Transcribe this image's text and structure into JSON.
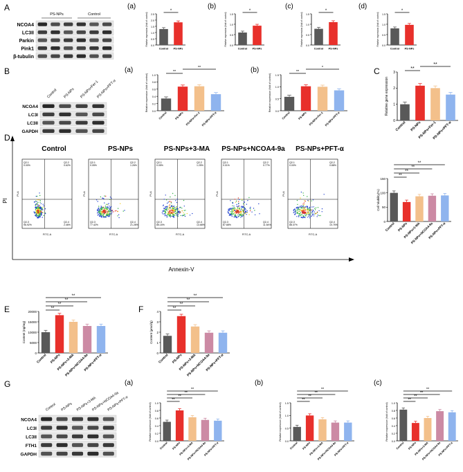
{
  "panels": {
    "A": {
      "letter": "A",
      "blot_header": [
        "PS-NPs",
        "Control"
      ],
      "blot_rows": [
        "NCOA4",
        "LC3II",
        "Parkin",
        "Pink1",
        "β-tubulin"
      ],
      "charts": [
        {
          "sub": "(a)",
          "categories": [
            "Control",
            "PS-NPs"
          ],
          "values": [
            1.28,
            1.82
          ],
          "ylim": [
            0,
            2.5
          ],
          "ticks": [
            "0.0",
            "0.5",
            "1.0",
            "1.5",
            "2.0",
            "2.5"
          ],
          "sig": [
            "*"
          ]
        },
        {
          "sub": "(b)",
          "categories": [
            "Control",
            "PS-NPs"
          ],
          "values": [
            0.6,
            0.93
          ],
          "ylim": [
            0,
            1.5
          ],
          "ticks": [
            "0.0",
            "0.5",
            "1.0",
            "1.5"
          ],
          "sig": [
            "*"
          ]
        },
        {
          "sub": "(c)",
          "categories": [
            "Control",
            "PS-NPs"
          ],
          "values": [
            0.78,
            1.1
          ],
          "ylim": [
            0,
            1.5
          ],
          "ticks": [
            "0.0",
            "0.5",
            "1.0",
            "1.5"
          ],
          "sig": [
            "*"
          ]
        },
        {
          "sub": "(d)",
          "categories": [
            "Control",
            "PS-NPs"
          ],
          "values": [
            0.8,
            0.97
          ],
          "ylim": [
            0,
            1.5
          ],
          "ticks": [
            "0.0",
            "0.5",
            "1.0",
            "1.5"
          ],
          "sig": [
            "*"
          ]
        }
      ]
    },
    "B": {
      "letter": "B",
      "blot_header": [
        "Control",
        "PS-NPs",
        "PS-NPs+Fer-1",
        "PS-NPs+PFT-α"
      ],
      "blot_rows": [
        "NCOA4",
        "LC3I",
        "LC3II",
        "GAPDH"
      ],
      "charts": [
        {
          "sub": "(a)",
          "categories": [
            "Control",
            "PS-NPs",
            "PS-NPs+Fer-1",
            "PS-NPs+PFT-α"
          ],
          "values": [
            0.34,
            0.67,
            0.68,
            0.46
          ],
          "ylim": [
            0,
            1.0
          ],
          "ticks": [
            "0.0",
            "0.2",
            "0.4",
            "0.6",
            "0.8",
            "1.0"
          ],
          "sig": [
            "**",
            "**"
          ]
        },
        {
          "sub": "(b)",
          "categories": [
            "Control",
            "PS-NPs",
            "PS-NPs+Fer-1",
            "PS-NPs+PFT-α"
          ],
          "values": [
            0.58,
            1.02,
            1.0,
            0.85
          ],
          "ylim": [
            0,
            1.5
          ],
          "ticks": [
            "0.0",
            "0.5",
            "1.0",
            "1.5"
          ],
          "sig": [
            "**",
            "*"
          ]
        }
      ]
    },
    "C": {
      "letter": "C",
      "chart": {
        "categories": [
          "Control",
          "PS-NPs",
          "PS-NPs+Fer-1",
          "PS-NPs+PFT-α"
        ],
        "values": [
          1.0,
          2.15,
          2.0,
          1.6
        ],
        "ylim": [
          0,
          3
        ],
        "ticks": [
          "0",
          "1",
          "2",
          "3"
        ],
        "ylabel": "Relative gene expression",
        "sig": [
          "**",
          "**"
        ]
      }
    },
    "D": {
      "letter": "D",
      "titles": [
        "Control",
        "PS-NPs",
        "PS-NPs+3-MA",
        "PS-NPs+NCOA4-9a",
        "PS-NPs+PFT-α"
      ],
      "quadrants": [
        {
          "q1": "Q2-1",
          "q1v": "0.00%",
          "q2": "Q2-2",
          "q2v": "0.62%",
          "q3": "Q2-3",
          "q3v": "96.92%",
          "q4": "Q2-4",
          "q4v": "2.46%"
        },
        {
          "q1": "Q2-1",
          "q1v": "0.05%",
          "q2": "Q2-2",
          "q2v": "1.26%",
          "q3": "Q2-3",
          "q3v": "77.42%",
          "q4": "Q2-4",
          "q4v": "21.28%"
        },
        {
          "q1": "Q2-1",
          "q1v": "0.05%",
          "q2": "Q2-2",
          "q2v": "1.25%",
          "q3": "Q2-3",
          "q3v": "85.15%",
          "q4": "Q2-4",
          "q4v": "13.68%"
        },
        {
          "q1": "Q2-1",
          "q1v": "0.01%",
          "q2": "Q2-2",
          "q2v": "0.77%",
          "q3": "Q2-3",
          "q3v": "87.68%",
          "q4": "Q2-4",
          "q4v": "11.54%"
        },
        {
          "q1": "Q2-1",
          "q1v": "0.00%",
          "q2": "Q2-2",
          "q2v": "0.88%",
          "q3": "Q2-3",
          "q3v": "88.37%",
          "q4": "Q2-4",
          "q4v": "10.75%"
        }
      ],
      "axis_x": "FITC-A",
      "axis_y": "PI-A",
      "big_x": "Annexin-V",
      "big_y": "PI",
      "chart": {
        "categories": [
          "Control",
          "PS-NPs",
          "PS-NPs+3-MA",
          "PS-NPs+NCOA4-9a",
          "PS-NPs+PFT-α"
        ],
        "values": [
          100,
          68,
          88,
          90,
          91
        ],
        "ylim": [
          0,
          150
        ],
        "ticks": [
          "0",
          "50",
          "100",
          "150"
        ],
        "ylabel": "Cell Viability(%)",
        "sig": [
          "**",
          "**",
          "**",
          "**"
        ]
      }
    },
    "E": {
      "letter": "E",
      "chart": {
        "categories": [
          "Control",
          "PS-NPs",
          "PS-NPs+3-MA",
          "PS-NPs+NCOA4-9a",
          "PS-NPs+PFT-α"
        ],
        "values": [
          10000,
          18200,
          15000,
          13000,
          13000
        ],
        "ylim": [
          0,
          20000
        ],
        "ticks": [
          "0",
          "5000",
          "10000",
          "15000",
          "20000"
        ],
        "ylabel": "Content (ng/mg)",
        "sig": [
          "**",
          "**",
          "**",
          "**"
        ]
      }
    },
    "F": {
      "letter": "F",
      "chart": {
        "categories": [
          "Control",
          "PS-NPs",
          "PS-NPs+3-MA",
          "PS-NPs+NCOA4-9a",
          "PS-NPs+PFT-α"
        ],
        "values": [
          1.65,
          3.55,
          2.55,
          1.95,
          1.95
        ],
        "ylim": [
          0,
          4
        ],
        "ticks": [
          "0",
          "1",
          "2",
          "3",
          "4"
        ],
        "ylabel": "Content (μmol/g)",
        "sig": [
          "**",
          "**",
          "**",
          "**"
        ]
      }
    },
    "G": {
      "letter": "G",
      "blot_header": [
        "Control",
        "PS-NPs",
        "PS-NPs+3-MA",
        "PS-NPs+NCOA4-9a",
        "PS-NPs+PFT-α"
      ],
      "blot_rows": [
        "NCOA4",
        "LC3I",
        "LC3II",
        "FTH1",
        "GAPDH"
      ],
      "charts": [
        {
          "sub": "(a)",
          "categories": [
            "Control",
            "PS-NPs",
            "PS-NPs+3-MA",
            "PS-NPs+NCOA4-9a",
            "PS-NPs+PFT-α"
          ],
          "values": [
            0.5,
            0.8,
            0.62,
            0.55,
            0.53
          ],
          "ylim": [
            0,
            1.0
          ],
          "ticks": [
            "0.0",
            "0.2",
            "0.4",
            "0.6",
            "0.8",
            "1.0"
          ],
          "sig": [
            "**",
            "**",
            "**",
            "**"
          ]
        },
        {
          "sub": "(b)",
          "categories": [
            "Control",
            "PS-NPs",
            "PS-NPs+3-MA",
            "PS-NPs+NCOA4-9a",
            "PS-NPs+PFT-α"
          ],
          "values": [
            0.55,
            1.0,
            0.85,
            0.72,
            0.72
          ],
          "ylim": [
            0,
            1.5
          ],
          "ticks": [
            "0.0",
            "0.5",
            "1.0",
            "1.5"
          ],
          "sig": [
            "**",
            "**",
            "**",
            "**"
          ]
        },
        {
          "sub": "(c)",
          "categories": [
            "Control",
            "PS-NPs",
            "PS-NPs+3-MA",
            "PS-NPs+NCOA4-9a",
            "PS-NPs+PFT-α"
          ],
          "values": [
            0.82,
            0.47,
            0.6,
            0.78,
            0.75
          ],
          "ylim": [
            0,
            1.0
          ],
          "ticks": [
            "0.0",
            "0.2",
            "0.4",
            "0.6",
            "0.8",
            "1.0"
          ],
          "sig": [
            "**",
            "**",
            "**",
            "**"
          ]
        }
      ]
    }
  },
  "small_ylabel": "Relative expression (fold of control)",
  "colors": {
    "control": "#595959",
    "psnps": "#e8302b",
    "t3": "#f3c08b",
    "t4": "#cc8aa4",
    "t5": "#8fb4ee",
    "t_fer": "#f3c08b",
    "t_pft": "#8fb4ee"
  },
  "chart_data": [
    {
      "type": "bar",
      "title": "A(a)",
      "categories": [
        "Control",
        "PS-NPs"
      ],
      "values": [
        1.28,
        1.82
      ],
      "ylabel": "Relative expression (fold of control)",
      "ylim": [
        0,
        2.5
      ]
    },
    {
      "type": "bar",
      "title": "A(b)",
      "categories": [
        "Control",
        "PS-NPs"
      ],
      "values": [
        0.6,
        0.93
      ],
      "ylabel": "Relative expression (fold of control)",
      "ylim": [
        0,
        1.5
      ]
    },
    {
      "type": "bar",
      "title": "A(c)",
      "categories": [
        "Control",
        "PS-NPs"
      ],
      "values": [
        0.78,
        1.1
      ],
      "ylabel": "Relative expression (fold of control)",
      "ylim": [
        0,
        1.5
      ]
    },
    {
      "type": "bar",
      "title": "A(d)",
      "categories": [
        "Control",
        "PS-NPs"
      ],
      "values": [
        0.8,
        0.97
      ],
      "ylabel": "Relative expression (fold of control)",
      "ylim": [
        0,
        1.5
      ]
    },
    {
      "type": "bar",
      "title": "B(a)",
      "categories": [
        "Control",
        "PS-NPs",
        "PS-NPs+Fer-1",
        "PS-NPs+PFT-α"
      ],
      "values": [
        0.34,
        0.67,
        0.68,
        0.46
      ],
      "ylim": [
        0,
        1.0
      ]
    },
    {
      "type": "bar",
      "title": "B(b)",
      "categories": [
        "Control",
        "PS-NPs",
        "PS-NPs+Fer-1",
        "PS-NPs+PFT-α"
      ],
      "values": [
        0.58,
        1.02,
        1.0,
        0.85
      ],
      "ylim": [
        0,
        1.5
      ]
    },
    {
      "type": "bar",
      "title": "C",
      "categories": [
        "Control",
        "PS-NPs",
        "PS-NPs+Fer-1",
        "PS-NPs+PFT-α"
      ],
      "values": [
        1.0,
        2.15,
        2.0,
        1.6
      ],
      "ylabel": "Relative gene expression",
      "ylim": [
        0,
        3
      ]
    },
    {
      "type": "bar",
      "title": "D",
      "categories": [
        "Control",
        "PS-NPs",
        "PS-NPs+3-MA",
        "PS-NPs+NCOA4-9a",
        "PS-NPs+PFT-α"
      ],
      "values": [
        100,
        68,
        88,
        90,
        91
      ],
      "ylabel": "Cell Viability(%)",
      "ylim": [
        0,
        150
      ]
    },
    {
      "type": "bar",
      "title": "E",
      "categories": [
        "Control",
        "PS-NPs",
        "PS-NPs+3-MA",
        "PS-NPs+NCOA4-9a",
        "PS-NPs+PFT-α"
      ],
      "values": [
        10000,
        18200,
        15000,
        13000,
        13000
      ],
      "ylabel": "Content (ng/mg)",
      "ylim": [
        0,
        20000
      ]
    },
    {
      "type": "bar",
      "title": "F",
      "categories": [
        "Control",
        "PS-NPs",
        "PS-NPs+3-MA",
        "PS-NPs+NCOA4-9a",
        "PS-NPs+PFT-α"
      ],
      "values": [
        1.65,
        3.55,
        2.55,
        1.95,
        1.95
      ],
      "ylabel": "Content (μmol/g)",
      "ylim": [
        0,
        4
      ]
    },
    {
      "type": "bar",
      "title": "G(a)",
      "categories": [
        "Control",
        "PS-NPs",
        "PS-NPs+3-MA",
        "PS-NPs+NCOA4-9a",
        "PS-NPs+PFT-α"
      ],
      "values": [
        0.5,
        0.8,
        0.62,
        0.55,
        0.53
      ],
      "ylim": [
        0,
        1.0
      ]
    },
    {
      "type": "bar",
      "title": "G(b)",
      "categories": [
        "Control",
        "PS-NPs",
        "PS-NPs+3-MA",
        "PS-NPs+NCOA4-9a",
        "PS-NPs+PFT-α"
      ],
      "values": [
        0.55,
        1.0,
        0.85,
        0.72,
        0.72
      ],
      "ylim": [
        0,
        1.5
      ]
    },
    {
      "type": "bar",
      "title": "G(c)",
      "categories": [
        "Control",
        "PS-NPs",
        "PS-NPs+3-MA",
        "PS-NPs+NCOA4-9a",
        "PS-NPs+PFT-α"
      ],
      "values": [
        0.82,
        0.47,
        0.6,
        0.78,
        0.75
      ],
      "ylim": [
        0,
        1.0
      ]
    }
  ]
}
